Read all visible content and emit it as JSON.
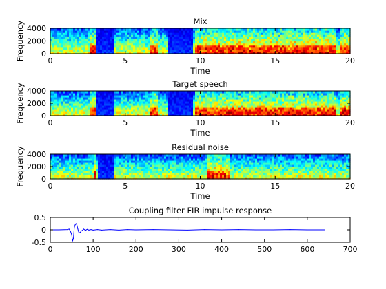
{
  "chart_data": [
    {
      "type": "heatmap",
      "kind": "spectrogram",
      "title": "Mix",
      "xlabel": "Time",
      "ylabel": "Frequency",
      "xlim": [
        0,
        20
      ],
      "ylim": [
        0,
        4000
      ],
      "xticks": [
        "0",
        "5",
        "10",
        "15",
        "20"
      ],
      "yticks": [
        "0",
        "2000",
        "4000"
      ],
      "colormap": "jet",
      "quiet_intervals": [
        [
          3.1,
          4.3
        ],
        [
          7.9,
          9.5
        ]
      ],
      "loud_intervals": [
        [
          2.6,
          3.0
        ],
        [
          6.6,
          7.2
        ],
        [
          9.7,
          19.0
        ],
        [
          19.3,
          20
        ]
      ]
    },
    {
      "type": "heatmap",
      "kind": "spectrogram",
      "title": "Target speech",
      "xlabel": "Time",
      "ylabel": "Frequency",
      "xlim": [
        0,
        20
      ],
      "ylim": [
        0,
        4000
      ],
      "xticks": [
        "0",
        "5",
        "10",
        "15",
        "20"
      ],
      "yticks": [
        "0",
        "2000",
        "4000"
      ],
      "colormap": "jet",
      "quiet_intervals": [
        [
          3.1,
          4.3
        ],
        [
          7.9,
          9.5
        ]
      ],
      "loud_intervals": [
        [
          2.6,
          3.0
        ],
        [
          6.6,
          7.2
        ],
        [
          9.7,
          19.0
        ],
        [
          19.3,
          20
        ]
      ]
    },
    {
      "type": "heatmap",
      "kind": "spectrogram",
      "title": "Residual noise",
      "xlabel": "Time",
      "ylabel": "Frequency",
      "xlim": [
        0,
        20
      ],
      "ylim": [
        0,
        4000
      ],
      "xticks": [
        "0",
        "5",
        "10",
        "15",
        "20"
      ],
      "yticks": [
        "0",
        "2000",
        "4000"
      ],
      "colormap": "jet",
      "quiet_intervals": [
        [
          3.2,
          4.3
        ]
      ],
      "loud_intervals": [
        [
          2.9,
          3.1
        ],
        [
          10.5,
          12.0
        ]
      ]
    },
    {
      "type": "line",
      "title": "Coupling filter FIR impulse response",
      "xlabel": "",
      "ylabel": "",
      "xlim": [
        0,
        700
      ],
      "ylim": [
        -0.5,
        0.5
      ],
      "xticks": [
        "0",
        "100",
        "200",
        "300",
        "400",
        "500",
        "600",
        "700"
      ],
      "yticks": [
        "-0.5",
        "0",
        "0.5"
      ],
      "color": "#0000ff",
      "x": [
        0,
        20,
        40,
        44,
        47,
        50,
        52,
        54,
        56,
        58,
        60,
        62,
        64,
        66,
        68,
        70,
        72,
        75,
        78,
        82,
        86,
        90,
        95,
        100,
        110,
        120,
        140,
        160,
        180,
        200,
        240,
        280,
        320,
        360,
        400,
        440,
        480,
        520,
        560,
        600,
        640
      ],
      "y": [
        0,
        0,
        0.01,
        0.03,
        -0.05,
        -0.2,
        -0.45,
        -0.35,
        0.1,
        0.2,
        0.25,
        0.2,
        0.05,
        -0.08,
        -0.12,
        -0.1,
        -0.05,
        -0.02,
        0.03,
        -0.02,
        0.02,
        -0.01,
        0.01,
        -0.01,
        0.01,
        -0.01,
        0.01,
        -0.01,
        0.01,
        0,
        0.01,
        0,
        -0.01,
        0.01,
        0,
        0.01,
        0,
        0,
        0.01,
        0,
        0
      ]
    }
  ]
}
